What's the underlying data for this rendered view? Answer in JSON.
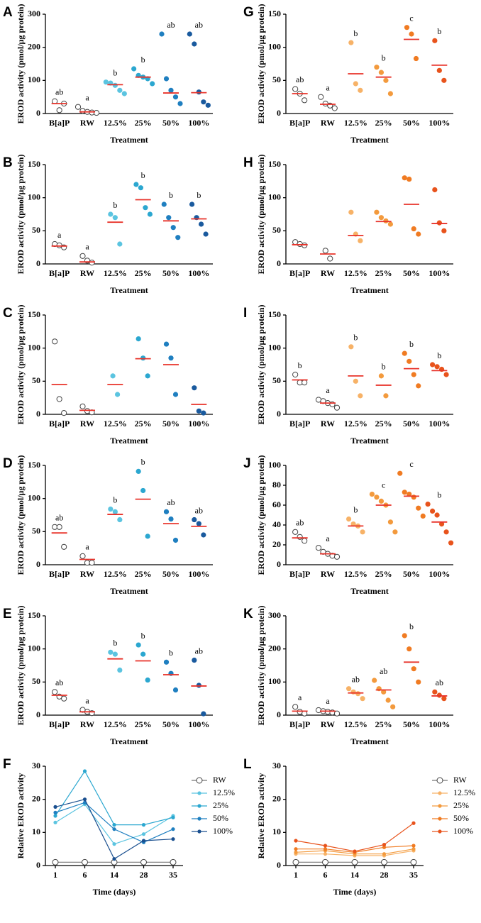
{
  "chart_data": [
    {
      "type": "dot",
      "label": "A",
      "ylabel": "EROD activity (pmol/μg protein)",
      "xlabel": "Treatment",
      "ylim": [
        0,
        300
      ],
      "yticks": [
        0,
        100,
        200,
        300
      ],
      "series": [
        {
          "name": "B[a]P",
          "color": "#ffffff",
          "values": [
            37,
            10,
            30
          ],
          "mean": 30,
          "letter": "ab"
        },
        {
          "name": "RW",
          "color": "#ffffff",
          "values": [
            20,
            8,
            5,
            3,
            2
          ],
          "mean": 5,
          "letter": "a"
        },
        {
          "name": "12.5%",
          "color": "#5bc4e0",
          "values": [
            95,
            92,
            85,
            70,
            60
          ],
          "mean": 87,
          "letter": "b"
        },
        {
          "name": "25%",
          "color": "#2ba7d0",
          "values": [
            135,
            115,
            110,
            105,
            90
          ],
          "mean": 110,
          "letter": "b"
        },
        {
          "name": "50%",
          "color": "#1f7fc0",
          "values": [
            240,
            105,
            70,
            50,
            30
          ],
          "mean": 62,
          "letter": "ab"
        },
        {
          "name": "100%",
          "color": "#1a5a9e",
          "values": [
            240,
            210,
            65,
            35,
            25
          ],
          "mean": 63,
          "letter": "ab"
        }
      ]
    },
    {
      "type": "dot",
      "label": "B",
      "ylabel": "EROD activity (pmol/μg protein)",
      "xlabel": "Treatment",
      "ylim": [
        0,
        150
      ],
      "yticks": [
        0,
        50,
        100,
        150
      ],
      "series": [
        {
          "name": "B[a]P",
          "color": "#ffffff",
          "values": [
            30,
            28,
            25
          ],
          "mean": 27,
          "letter": "a"
        },
        {
          "name": "RW",
          "color": "#ffffff",
          "values": [
            12,
            5,
            2
          ],
          "mean": 3,
          "letter": "a"
        },
        {
          "name": "12.5%",
          "color": "#5bc4e0",
          "values": [
            75,
            70,
            30
          ],
          "mean": 63,
          "letter": "b"
        },
        {
          "name": "25%",
          "color": "#2ba7d0",
          "values": [
            120,
            115,
            85,
            75
          ],
          "mean": 97,
          "letter": "b"
        },
        {
          "name": "50%",
          "color": "#1f7fc0",
          "values": [
            90,
            70,
            55,
            40
          ],
          "mean": 65,
          "letter": "b"
        },
        {
          "name": "100%",
          "color": "#1a5a9e",
          "values": [
            90,
            70,
            60,
            45
          ],
          "mean": 68,
          "letter": "b"
        }
      ]
    },
    {
      "type": "dot",
      "label": "C",
      "ylabel": "EROD activity (pmol/μg protein)",
      "xlabel": "Treatment",
      "ylim": [
        0,
        150
      ],
      "yticks": [
        0,
        50,
        100,
        150
      ],
      "series": [
        {
          "name": "B[a]P",
          "color": "#ffffff",
          "values": [
            110,
            23,
            2
          ],
          "mean": 45
        },
        {
          "name": "RW",
          "color": "#ffffff",
          "values": [
            12,
            5,
            3
          ],
          "mean": 6
        },
        {
          "name": "12.5%",
          "color": "#5bc4e0",
          "values": [
            58,
            30
          ],
          "mean": 45
        },
        {
          "name": "25%",
          "color": "#2ba7d0",
          "values": [
            114,
            85,
            58
          ],
          "mean": 84
        },
        {
          "name": "50%",
          "color": "#1f7fc0",
          "values": [
            106,
            85,
            30
          ],
          "mean": 75
        },
        {
          "name": "100%",
          "color": "#1a5a9e",
          "values": [
            40,
            5,
            2
          ],
          "mean": 15
        }
      ]
    },
    {
      "type": "dot",
      "label": "D",
      "ylabel": "EROD activity (pmol/μg protein)",
      "xlabel": "Treatment",
      "ylim": [
        0,
        150
      ],
      "yticks": [
        0,
        50,
        100,
        150
      ],
      "series": [
        {
          "name": "B[a]P",
          "color": "#ffffff",
          "values": [
            57,
            57,
            27
          ],
          "mean": 48,
          "letter": "ab"
        },
        {
          "name": "RW",
          "color": "#ffffff",
          "values": [
            13,
            3,
            3
          ],
          "mean": 8,
          "letter": "a"
        },
        {
          "name": "12.5%",
          "color": "#5bc4e0",
          "values": [
            84,
            80,
            68
          ],
          "mean": 76,
          "letter": "b"
        },
        {
          "name": "25%",
          "color": "#2ba7d0",
          "values": [
            141,
            112,
            43
          ],
          "mean": 99,
          "letter": "b"
        },
        {
          "name": "50%",
          "color": "#1f7fc0",
          "values": [
            80,
            69,
            37
          ],
          "mean": 62,
          "letter": "ab"
        },
        {
          "name": "100%",
          "color": "#1a5a9e",
          "values": [
            68,
            62,
            45
          ],
          "mean": 58,
          "letter": "ab"
        }
      ]
    },
    {
      "type": "dot",
      "label": "E",
      "ylabel": "EROD activity (pmol/μg protein)",
      "xlabel": "Treatment",
      "ylim": [
        0,
        150
      ],
      "yticks": [
        0,
        50,
        100,
        150
      ],
      "series": [
        {
          "name": "B[a]P",
          "color": "#ffffff",
          "values": [
            35,
            28,
            25
          ],
          "mean": 30,
          "letter": "ab"
        },
        {
          "name": "RW",
          "color": "#ffffff",
          "values": [
            8,
            5,
            3
          ],
          "mean": 5,
          "letter": "a"
        },
        {
          "name": "12.5%",
          "color": "#5bc4e0",
          "values": [
            95,
            92,
            68
          ],
          "mean": 85,
          "letter": "b"
        },
        {
          "name": "25%",
          "color": "#2ba7d0",
          "values": [
            106,
            92,
            53
          ],
          "mean": 82,
          "letter": "b"
        },
        {
          "name": "50%",
          "color": "#1f7fc0",
          "values": [
            80,
            63,
            38
          ],
          "mean": 61,
          "letter": "b"
        },
        {
          "name": "100%",
          "color": "#1a5a9e",
          "values": [
            83,
            45,
            2
          ],
          "mean": 44,
          "letter": "ab"
        }
      ]
    },
    {
      "type": "line",
      "label": "F",
      "ylabel": "Relative EROD activity",
      "xlabel": "Time (days)",
      "categories": [
        "1",
        "6",
        "14",
        "28",
        "35"
      ],
      "ylim": [
        0,
        30
      ],
      "yticks": [
        0,
        10,
        20,
        30
      ],
      "series": [
        {
          "name": "RW",
          "color": "#ffffff",
          "values": [
            1,
            1,
            1,
            1,
            1
          ]
        },
        {
          "name": "12.5%",
          "color": "#5bc4e0",
          "values": [
            13,
            18.5,
            6.5,
            9.5,
            15
          ]
        },
        {
          "name": "25%",
          "color": "#2ba7d0",
          "values": [
            15,
            28.5,
            12.3,
            12.3,
            14.5
          ]
        },
        {
          "name": "50%",
          "color": "#1f7fc0",
          "values": [
            16,
            19,
            11,
            7,
            11
          ]
        },
        {
          "name": "100%",
          "color": "#1a4f8f",
          "values": [
            17.7,
            20,
            2,
            7.5,
            8
          ]
        }
      ]
    },
    {
      "type": "dot",
      "label": "G",
      "ylabel": "EROD activity (pmol/μg protein)",
      "xlabel": "Treatment",
      "ylim": [
        0,
        150
      ],
      "yticks": [
        0,
        50,
        100,
        150
      ],
      "series": [
        {
          "name": "B[a]P",
          "color": "#ffffff",
          "values": [
            37,
            30,
            20
          ],
          "mean": 30,
          "letter": "ab"
        },
        {
          "name": "RW",
          "color": "#ffffff",
          "values": [
            25,
            15,
            12,
            8
          ],
          "mean": 14,
          "letter": "a"
        },
        {
          "name": "12.5%",
          "color": "#f7b267",
          "values": [
            107,
            45,
            35
          ],
          "mean": 60,
          "letter": "b"
        },
        {
          "name": "25%",
          "color": "#f39a3d",
          "values": [
            70,
            62,
            50,
            30
          ],
          "mean": 55,
          "letter": "b"
        },
        {
          "name": "50%",
          "color": "#f07b22",
          "values": [
            130,
            120,
            83
          ],
          "mean": 112,
          "letter": "c"
        },
        {
          "name": "100%",
          "color": "#e8531c",
          "values": [
            110,
            65,
            50
          ],
          "mean": 73,
          "letter": "b"
        }
      ]
    },
    {
      "type": "dot",
      "label": "H",
      "ylabel": "EROD activity (pmol/μg protein)",
      "xlabel": "Treatment",
      "ylim": [
        0,
        150
      ],
      "yticks": [
        0,
        50,
        100,
        150
      ],
      "series": [
        {
          "name": "B[a]P",
          "color": "#ffffff",
          "values": [
            33,
            30,
            28
          ],
          "mean": 29
        },
        {
          "name": "RW",
          "color": "#ffffff",
          "values": [
            20,
            8
          ],
          "mean": 15
        },
        {
          "name": "12.5%",
          "color": "#f7b267",
          "values": [
            78,
            45,
            35
          ],
          "mean": 43
        },
        {
          "name": "25%",
          "color": "#f39a3d",
          "values": [
            78,
            70,
            65,
            60
          ],
          "mean": 64
        },
        {
          "name": "50%",
          "color": "#f07b22",
          "values": [
            130,
            128,
            53,
            45
          ],
          "mean": 90
        },
        {
          "name": "100%",
          "color": "#e8531c",
          "values": [
            112,
            62,
            50
          ],
          "mean": 61
        }
      ]
    },
    {
      "type": "dot",
      "label": "I",
      "ylabel": "EROD activity (pmol/μg protein)",
      "xlabel": "Treatment",
      "ylim": [
        0,
        150
      ],
      "yticks": [
        0,
        50,
        100,
        150
      ],
      "series": [
        {
          "name": "B[a]P",
          "color": "#ffffff",
          "values": [
            60,
            48,
            48
          ],
          "mean": 52,
          "letter": "b"
        },
        {
          "name": "RW",
          "color": "#ffffff",
          "values": [
            22,
            20,
            17,
            15,
            10
          ],
          "mean": 17,
          "letter": "a"
        },
        {
          "name": "12.5%",
          "color": "#f7b267",
          "values": [
            102,
            50,
            28
          ],
          "mean": 58,
          "letter": "b"
        },
        {
          "name": "25%",
          "color": "#f39a3d",
          "values": [
            58,
            28
          ],
          "mean": 44,
          "letter": "b"
        },
        {
          "name": "50%",
          "color": "#f07b22",
          "values": [
            92,
            80,
            60,
            43
          ],
          "mean": 69,
          "letter": "b"
        },
        {
          "name": "100%",
          "color": "#e8531c",
          "values": [
            75,
            72,
            68,
            60
          ],
          "mean": 66,
          "letter": "b"
        }
      ]
    },
    {
      "type": "dot",
      "label": "J",
      "ylabel": "EROD activity (pmol/μg protein)",
      "xlabel": "Treatment",
      "ylim": [
        0,
        100
      ],
      "yticks": [
        0,
        20,
        40,
        60,
        80,
        100
      ],
      "series": [
        {
          "name": "B[a]P",
          "color": "#ffffff",
          "values": [
            33,
            28,
            24
          ],
          "mean": 27,
          "letter": "ab"
        },
        {
          "name": "RW",
          "color": "#ffffff",
          "values": [
            17,
            13,
            11,
            9,
            8
          ],
          "mean": 11,
          "letter": "a"
        },
        {
          "name": "12.5%",
          "color": "#f7b267",
          "values": [
            46,
            41,
            39,
            33
          ],
          "mean": 39,
          "letter": "b"
        },
        {
          "name": "25%",
          "color": "#f39a3d",
          "values": [
            71,
            68,
            64,
            60,
            43,
            33
          ],
          "mean": 60,
          "letter": "c"
        },
        {
          "name": "50%",
          "color": "#f07b22",
          "values": [
            92,
            73,
            71,
            68,
            57,
            49
          ],
          "mean": 69,
          "letter": "c"
        },
        {
          "name": "100%",
          "color": "#e8531c",
          "values": [
            61,
            54,
            50,
            41,
            33,
            22
          ],
          "mean": 43,
          "letter": "b"
        }
      ]
    },
    {
      "type": "dot",
      "label": "K",
      "ylabel": "EROD activity (pmol/μg protein)",
      "xlabel": "Treatment",
      "ylim": [
        0,
        300
      ],
      "yticks": [
        0,
        100,
        200,
        300
      ],
      "series": [
        {
          "name": "B[a]P",
          "color": "#ffffff",
          "values": [
            25,
            10,
            5
          ],
          "mean": 12,
          "letter": "a"
        },
        {
          "name": "RW",
          "color": "#ffffff",
          "values": [
            15,
            12,
            10,
            8,
            5
          ],
          "mean": 12,
          "letter": "a"
        },
        {
          "name": "12.5%",
          "color": "#f7b267",
          "values": [
            80,
            70,
            65,
            50
          ],
          "mean": 67,
          "letter": "ab"
        },
        {
          "name": "25%",
          "color": "#f39a3d",
          "values": [
            105,
            80,
            70,
            45,
            25
          ],
          "mean": 76,
          "letter": "ab"
        },
        {
          "name": "50%",
          "color": "#f07b22",
          "values": [
            240,
            200,
            140,
            100
          ],
          "mean": 160,
          "letter": "b"
        },
        {
          "name": "100%",
          "color": "#e8531c",
          "values": [
            70,
            60,
            50
          ],
          "mean": 58,
          "letter": "ab"
        }
      ]
    },
    {
      "type": "line",
      "label": "L",
      "ylabel": "Relative EROD activity",
      "xlabel": "Time (days)",
      "categories": [
        "1",
        "6",
        "14",
        "28",
        "35"
      ],
      "ylim": [
        0,
        30
      ],
      "yticks": [
        0,
        10,
        20,
        30
      ],
      "series": [
        {
          "name": "RW",
          "color": "#ffffff",
          "values": [
            1,
            1,
            1,
            1,
            1
          ]
        },
        {
          "name": "12.5%",
          "color": "#f7b267",
          "values": [
            3.5,
            3.5,
            3,
            3,
            4.5
          ]
        },
        {
          "name": "25%",
          "color": "#f39a3d",
          "values": [
            4,
            4.5,
            3.5,
            3.5,
            5
          ]
        },
        {
          "name": "50%",
          "color": "#f07b22",
          "values": [
            5,
            5,
            4,
            5.5,
            6
          ]
        },
        {
          "name": "100%",
          "color": "#e8531c",
          "values": [
            7.5,
            6,
            4.3,
            6.3,
            12.8
          ]
        }
      ]
    }
  ]
}
